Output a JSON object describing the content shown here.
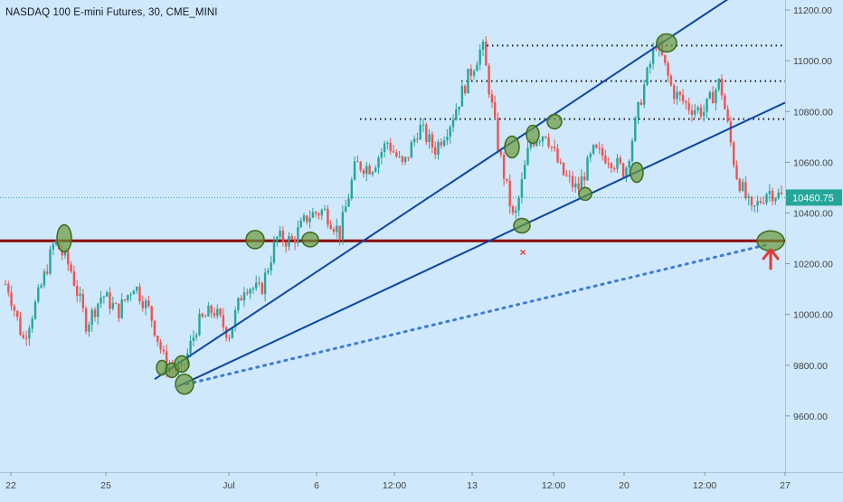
{
  "title": "NASDAQ 100 E-mini Futures, 30, CME_MINI",
  "last_price_label": "10460.75",
  "colors": {
    "background": "#cfe8fb",
    "up_candle": "#26a69a",
    "down_candle": "#ef5350",
    "support_line": "#8b0000",
    "trend_line": "#0d47a1",
    "dotted_trend": "#3d7bd6",
    "resistance_dots": "#1a1a1a",
    "highlight_fill": "#6a9a3c",
    "last_price_bg": "#26a69a",
    "arrow": "#e53935",
    "axis_text": "#444444"
  },
  "chart_data": {
    "type": "candlestick",
    "title": "NASDAQ 100 E-mini Futures, 30, CME_MINI",
    "ylim": [
      9400,
      11260
    ],
    "y_ticks": [
      9600,
      9800,
      10000,
      10200,
      10400,
      10600,
      10800,
      11000,
      11200
    ],
    "y_tick_labels": [
      "9600.00",
      "9800.00",
      "10000.00",
      "10200.00",
      "10400.00",
      "10600.00",
      "10800.00",
      "11000.00",
      "11200.00"
    ],
    "x_tick_labels": [
      "22",
      "25",
      "Jul",
      "6",
      "12:00",
      "13",
      "12:00",
      "20",
      "12:00",
      "27"
    ],
    "last_price": 10460.75,
    "price_path": [
      [
        "22",
        10120
      ],
      [
        "22",
        9900
      ],
      [
        "22",
        10080
      ],
      [
        "24",
        10290
      ],
      [
        "24",
        10180
      ],
      [
        "25",
        9960
      ],
      [
        "25",
        10080
      ],
      [
        "25",
        10010
      ],
      [
        "26",
        10120
      ],
      [
        "26",
        10010
      ],
      [
        "29",
        9800
      ],
      [
        "29",
        9770
      ],
      [
        "29",
        9960
      ],
      [
        "30",
        10020
      ],
      [
        "30",
        9920
      ],
      [
        "Jul",
        10120
      ],
      [
        "Jul",
        10090
      ],
      [
        "2",
        10300
      ],
      [
        "2",
        10290
      ],
      [
        "3",
        10390
      ],
      [
        "6",
        10410
      ],
      [
        "6",
        10320
      ],
      [
        "7",
        10590
      ],
      [
        "7",
        10580
      ],
      [
        "12:00",
        10680
      ],
      [
        "12:00",
        10580
      ],
      [
        "9",
        10740
      ],
      [
        "10",
        10650
      ],
      [
        "10",
        10760
      ],
      [
        "13",
        10920
      ],
      [
        "13",
        11060
      ],
      [
        "13",
        10660
      ],
      [
        "14",
        10360
      ],
      [
        "14",
        10680
      ],
      [
        "12:00",
        10720
      ],
      [
        "15",
        10560
      ],
      [
        "16",
        10490
      ],
      [
        "16",
        10640
      ],
      [
        "17",
        10620
      ],
      [
        "20",
        10560
      ],
      [
        "20",
        10850
      ],
      [
        "21",
        11080
      ],
      [
        "21",
        10880
      ],
      [
        "12:00",
        10820
      ],
      [
        "22",
        10800
      ],
      [
        "23",
        10920
      ],
      [
        "23",
        10560
      ],
      [
        "24",
        10400
      ],
      [
        "27",
        10490
      ],
      [
        "27",
        10461
      ]
    ],
    "horizontal_lines": [
      {
        "label": "support",
        "value": 10290
      },
      {
        "label": "resistance",
        "value": 11060
      },
      {
        "label": "resistance",
        "value": 10920
      },
      {
        "label": "resistance",
        "value": 10770
      }
    ],
    "trend_lines": [
      {
        "style": "solid",
        "from": [
          "26",
          9745
        ],
        "to": [
          "27",
          11260
        ]
      },
      {
        "style": "solid",
        "from": [
          "29",
          9715
        ],
        "to": [
          "27",
          10835
        ]
      },
      {
        "style": "dotted",
        "from": [
          "29",
          9725
        ],
        "to": [
          "27",
          10275
        ]
      }
    ],
    "highlighted_points": [
      [
        "24",
        10300
      ],
      [
        "2",
        10295
      ],
      [
        "6",
        10295
      ],
      [
        "29",
        9790
      ],
      [
        "29",
        9780
      ],
      [
        "29",
        9805
      ],
      [
        "29",
        9725
      ],
      [
        "14",
        10660
      ],
      [
        "14",
        10350
      ],
      [
        "14",
        10710
      ],
      [
        "15",
        10760
      ],
      [
        "17",
        10475
      ],
      [
        "21",
        10560
      ],
      [
        "21",
        11070
      ],
      [
        "27",
        10290
      ]
    ],
    "grid": false
  }
}
